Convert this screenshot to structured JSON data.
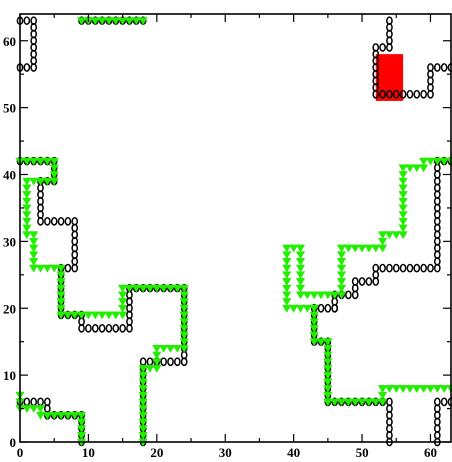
{
  "chart_data": {
    "type": "scatter",
    "title": "",
    "xlabel": "",
    "ylabel": "",
    "xlim": [
      0,
      63
    ],
    "ylim": [
      0,
      64
    ],
    "grid": false,
    "x_ticks": [
      "0",
      "10",
      "20",
      "30",
      "40",
      "50",
      "60"
    ],
    "y_ticks": [
      "0",
      "10",
      "20",
      "30",
      "40",
      "50",
      "60"
    ],
    "colors": {
      "circle_series": "#000000",
      "triangle_series": "#22ee00",
      "highlight": "#ff0000"
    },
    "series": [
      {
        "marker": "circle",
        "color": "#000000",
        "paths": [
          [
            [
              0,
              63
            ],
            [
              2,
              63
            ],
            [
              2,
              56
            ],
            [
              0,
              56
            ]
          ],
          [
            [
              0,
              6
            ],
            [
              4,
              6
            ],
            [
              4,
              4
            ],
            [
              9,
              4
            ],
            [
              9,
              0
            ]
          ],
          [
            [
              0,
              42
            ],
            [
              5,
              42
            ],
            [
              5,
              39
            ],
            [
              3,
              39
            ],
            [
              3,
              33
            ],
            [
              8,
              33
            ],
            [
              8,
              26
            ],
            [
              6,
              26
            ],
            [
              6,
              19
            ],
            [
              9,
              19
            ],
            [
              9,
              17
            ],
            [
              16,
              17
            ],
            [
              16,
              23
            ],
            [
              24,
              23
            ],
            [
              24,
              12
            ],
            [
              18,
              12
            ],
            [
              18,
              0
            ]
          ],
          [
            [
              9,
              63
            ],
            [
              18,
              63
            ]
          ],
          [
            [
              54,
              63
            ],
            [
              54,
              59
            ],
            [
              52,
              59
            ],
            [
              52,
              52
            ],
            [
              60,
              52
            ],
            [
              60,
              56
            ],
            [
              63,
              56
            ]
          ],
          [
            [
              46,
              20
            ],
            [
              46,
              22
            ],
            [
              49,
              22
            ],
            [
              49,
              24
            ],
            [
              52,
              24
            ],
            [
              52,
              26
            ],
            [
              61,
              26
            ],
            [
              61,
              42
            ],
            [
              63,
              42
            ]
          ],
          [
            [
              46,
              20
            ],
            [
              43,
              20
            ],
            [
              43,
              15
            ],
            [
              45,
              15
            ],
            [
              45,
              6
            ],
            [
              54,
              6
            ],
            [
              54,
              0
            ]
          ],
          [
            [
              63,
              6
            ],
            [
              61,
              6
            ],
            [
              61,
              0
            ]
          ]
        ]
      },
      {
        "marker": "triangle",
        "color": "#22ee00",
        "paths": [
          [
            [
              0,
              7
            ],
            [
              0,
              5
            ],
            [
              3,
              5
            ],
            [
              3,
              4
            ],
            [
              9,
              4
            ],
            [
              9,
              0
            ]
          ],
          [
            [
              0,
              42
            ],
            [
              5,
              42
            ],
            [
              5,
              39
            ],
            [
              1,
              39
            ],
            [
              1,
              31
            ],
            [
              2,
              31
            ],
            [
              2,
              26
            ],
            [
              6,
              26
            ],
            [
              6,
              19
            ],
            [
              15,
              19
            ],
            [
              15,
              23
            ],
            [
              24,
              23
            ],
            [
              24,
              14
            ],
            [
              20,
              14
            ],
            [
              20,
              11
            ],
            [
              18,
              11
            ],
            [
              18,
              0
            ]
          ],
          [
            [
              9,
              63
            ],
            [
              18,
              63
            ]
          ],
          [
            [
              43,
              20
            ],
            [
              39,
              20
            ],
            [
              39,
              29
            ],
            [
              41,
              29
            ],
            [
              41,
              22
            ],
            [
              47,
              22
            ],
            [
              47,
              29
            ],
            [
              53,
              29
            ],
            [
              53,
              31
            ],
            [
              56,
              31
            ],
            [
              56,
              41
            ],
            [
              59,
              41
            ],
            [
              59,
              42
            ],
            [
              63,
              42
            ]
          ],
          [
            [
              43,
              20
            ],
            [
              43,
              15
            ],
            [
              45,
              15
            ],
            [
              45,
              6
            ],
            [
              53,
              6
            ],
            [
              53,
              8
            ],
            [
              63,
              8
            ]
          ]
        ]
      }
    ],
    "highlight_region": {
      "x": [
        52,
        56
      ],
      "y": [
        51,
        58
      ]
    }
  }
}
